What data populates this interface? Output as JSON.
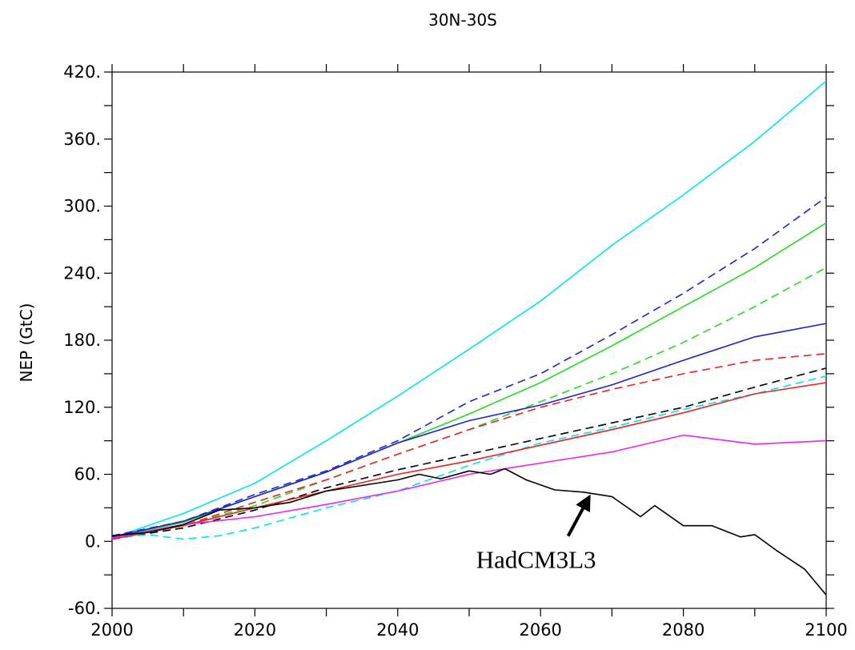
{
  "chart_data": {
    "type": "line",
    "title": "30N-30S",
    "xlabel": "",
    "ylabel": "NEP (GtC)",
    "xlim": [
      2000,
      2100
    ],
    "ylim": [
      -60,
      420
    ],
    "x_ticks": [
      2000,
      2020,
      2040,
      2060,
      2080,
      2100
    ],
    "x_tick_labels": [
      "2000",
      "2020",
      "2040",
      "2060",
      "2080",
      "2100"
    ],
    "y_ticks": [
      -60,
      0,
      60,
      120,
      180,
      240,
      300,
      360,
      420
    ],
    "y_tick_labels": [
      "-60.",
      "0.",
      "60.",
      "120.",
      "180.",
      "240.",
      "300.",
      "360.",
      "420."
    ],
    "grid": false,
    "series": [
      {
        "color": "#00e5ee",
        "dash": "solid",
        "x": [
          2000,
          2010,
          2020,
          2030,
          2040,
          2050,
          2060,
          2070,
          2080,
          2090,
          2100
        ],
        "y": [
          3,
          25,
          52,
          90,
          130,
          172,
          215,
          265,
          310,
          358,
          412
        ]
      },
      {
        "color": "#2222cc",
        "dash": "dashed",
        "x": [
          2000,
          2010,
          2020,
          2030,
          2040,
          2050,
          2060,
          2070,
          2080,
          2090,
          2100
        ],
        "y": [
          5,
          18,
          42,
          63,
          90,
          125,
          150,
          185,
          222,
          262,
          308
        ]
      },
      {
        "color": "#22dd22",
        "dash": "solid",
        "x": [
          2000,
          2010,
          2020,
          2030,
          2040,
          2050,
          2060,
          2070,
          2080,
          2090,
          2100
        ],
        "y": [
          3,
          17,
          40,
          62,
          88,
          114,
          142,
          175,
          210,
          245,
          285
        ]
      },
      {
        "color": "#22dd22",
        "dash": "dashed",
        "x": [
          2000,
          2010,
          2020,
          2030,
          2040,
          2050,
          2060,
          2070,
          2080,
          2090,
          2100
        ],
        "y": [
          2,
          14,
          32,
          55,
          78,
          100,
          125,
          150,
          178,
          210,
          245
        ]
      },
      {
        "color": "#2222cc",
        "dash": "solid",
        "x": [
          2000,
          2010,
          2020,
          2030,
          2040,
          2050,
          2060,
          2070,
          2080,
          2090,
          2100
        ],
        "y": [
          4,
          18,
          40,
          62,
          88,
          108,
          122,
          140,
          162,
          183,
          195
        ]
      },
      {
        "color": "#ee2222",
        "dash": "dashed",
        "x": [
          2000,
          2010,
          2020,
          2030,
          2040,
          2050,
          2060,
          2070,
          2080,
          2090,
          2100
        ],
        "y": [
          2,
          14,
          35,
          55,
          78,
          100,
          120,
          136,
          150,
          162,
          168
        ]
      },
      {
        "color": "#000000",
        "dash": "dashed",
        "x": [
          2000,
          2010,
          2020,
          2030,
          2040,
          2050,
          2060,
          2070,
          2080,
          2090,
          2100
        ],
        "y": [
          2,
          12,
          28,
          48,
          64,
          78,
          92,
          106,
          120,
          138,
          155
        ]
      },
      {
        "color": "#00e5ee",
        "dash": "dashed",
        "x": [
          2000,
          2005,
          2010,
          2015,
          2020,
          2030,
          2040,
          2050,
          2060,
          2070,
          2080,
          2090,
          2100
        ],
        "y": [
          3,
          6,
          2,
          5,
          12,
          30,
          45,
          68,
          88,
          102,
          118,
          132,
          148
        ]
      },
      {
        "color": "#ee2222",
        "dash": "solid",
        "x": [
          2000,
          2010,
          2020,
          2030,
          2040,
          2050,
          2060,
          2070,
          2080,
          2090,
          2100
        ],
        "y": [
          2,
          14,
          30,
          45,
          60,
          72,
          86,
          100,
          115,
          132,
          142
        ]
      },
      {
        "color": "#ee22ee",
        "dash": "solid",
        "x": [
          2000,
          2010,
          2020,
          2030,
          2040,
          2050,
          2060,
          2070,
          2080,
          2090,
          2100
        ],
        "y": [
          3,
          15,
          22,
          33,
          45,
          60,
          70,
          80,
          95,
          87,
          90
        ]
      },
      {
        "color": "#000000",
        "dash": "solid",
        "x": [
          2000,
          2005,
          2010,
          2015,
          2020,
          2025,
          2030,
          2035,
          2040,
          2043,
          2046,
          2050,
          2053,
          2055,
          2058,
          2062,
          2066,
          2070,
          2074,
          2076,
          2080,
          2084,
          2088,
          2090,
          2093,
          2097,
          2100
        ],
        "y": [
          5,
          8,
          15,
          28,
          30,
          35,
          45,
          50,
          55,
          60,
          56,
          63,
          60,
          65,
          55,
          46,
          44,
          40,
          22,
          32,
          14,
          14,
          4,
          6,
          -8,
          -25,
          -48
        ]
      }
    ],
    "annotation": {
      "text": "HadCM3L3",
      "arrow_to": [
        2067,
        42
      ]
    }
  }
}
